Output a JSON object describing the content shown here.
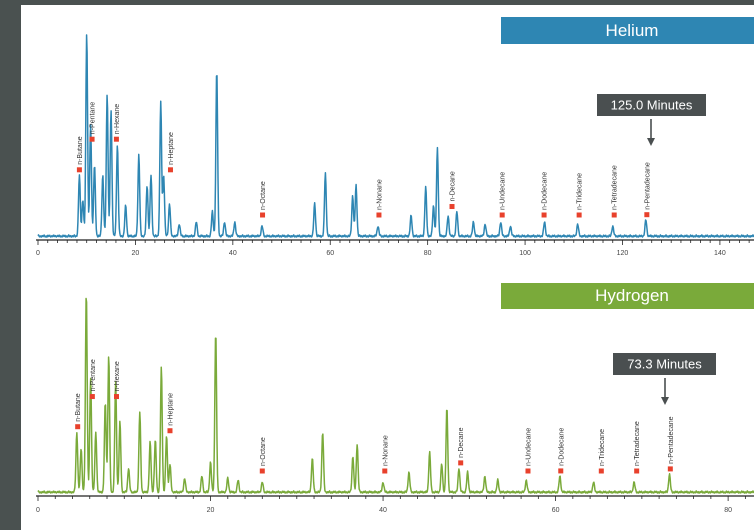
{
  "colors": {
    "frame": "#4a5150",
    "helium": "#2e86b3",
    "hydrogen": "#7aaa3a",
    "marker": "#e8412c",
    "callout_bg": "#4a4f50"
  },
  "chart_data": [
    {
      "type": "line",
      "title": "Helium",
      "callout": "125.0 Minutes",
      "callout_x": 125.0,
      "xlim": [
        0,
        147
      ],
      "xticks": [
        0,
        20,
        40,
        60,
        80,
        100,
        120,
        140
      ],
      "tick_labels": [
        "0",
        "20",
        "40",
        "60",
        "80",
        "100",
        "120",
        "140"
      ],
      "peaks": [
        {
          "x": 8.5,
          "h": 0.3
        },
        {
          "x": 9.2,
          "h": 0.18
        },
        {
          "x": 10.0,
          "h": 1.0
        },
        {
          "x": 10.8,
          "h": 0.55
        },
        {
          "x": 11.6,
          "h": 0.35
        },
        {
          "x": 13.3,
          "h": 0.3
        },
        {
          "x": 14.2,
          "h": 0.7
        },
        {
          "x": 15.0,
          "h": 0.62
        },
        {
          "x": 16.3,
          "h": 0.45
        },
        {
          "x": 18.0,
          "h": 0.15
        },
        {
          "x": 20.7,
          "h": 0.4
        },
        {
          "x": 22.4,
          "h": 0.25
        },
        {
          "x": 23.2,
          "h": 0.3
        },
        {
          "x": 25.2,
          "h": 0.66
        },
        {
          "x": 25.8,
          "h": 0.3
        },
        {
          "x": 27.0,
          "h": 0.16
        },
        {
          "x": 29.0,
          "h": 0.06
        },
        {
          "x": 32.5,
          "h": 0.07
        },
        {
          "x": 35.8,
          "h": 0.12
        },
        {
          "x": 36.7,
          "h": 0.82
        },
        {
          "x": 38.3,
          "h": 0.07
        },
        {
          "x": 40.4,
          "h": 0.07
        },
        {
          "x": 46.0,
          "h": 0.05
        },
        {
          "x": 56.8,
          "h": 0.16
        },
        {
          "x": 59.0,
          "h": 0.31
        },
        {
          "x": 64.6,
          "h": 0.2
        },
        {
          "x": 65.3,
          "h": 0.25
        },
        {
          "x": 69.8,
          "h": 0.05
        },
        {
          "x": 76.6,
          "h": 0.1
        },
        {
          "x": 79.6,
          "h": 0.24
        },
        {
          "x": 81.2,
          "h": 0.15
        },
        {
          "x": 82.0,
          "h": 0.43
        },
        {
          "x": 84.2,
          "h": 0.1
        },
        {
          "x": 86.0,
          "h": 0.12
        },
        {
          "x": 89.4,
          "h": 0.07
        },
        {
          "x": 91.8,
          "h": 0.06
        },
        {
          "x": 95.0,
          "h": 0.07
        },
        {
          "x": 97.0,
          "h": 0.05
        },
        {
          "x": 104.0,
          "h": 0.07
        },
        {
          "x": 110.8,
          "h": 0.06
        },
        {
          "x": 118.0,
          "h": 0.05
        },
        {
          "x": 124.8,
          "h": 0.08
        }
      ],
      "compounds": [
        {
          "name": "n-Butane",
          "x": 8.5
        },
        {
          "name": "n-Pentane",
          "x": 11.1
        },
        {
          "name": "n-Hexane",
          "x": 16.1
        },
        {
          "name": "n-Heptane",
          "x": 27.2
        },
        {
          "name": "n-Octane",
          "x": 46.1
        },
        {
          "name": "n-Nonane",
          "x": 70.0
        },
        {
          "name": "n-Decane",
          "x": 85.0
        },
        {
          "name": "n-Undecane",
          "x": 95.3
        },
        {
          "name": "n-Dodecane",
          "x": 103.9
        },
        {
          "name": "n-Tridecane",
          "x": 111.1
        },
        {
          "name": "n-Tetradecane",
          "x": 118.3
        },
        {
          "name": "n-Pentadecane",
          "x": 125.0
        }
      ]
    },
    {
      "type": "line",
      "title": "Hydrogen",
      "callout": "73.3 Minutes",
      "callout_x": 73.3,
      "xlim": [
        0,
        83
      ],
      "xticks": [
        0,
        20,
        40,
        60,
        80
      ],
      "tick_labels": [
        "0",
        "20",
        "40",
        "60",
        "80"
      ],
      "peaks": [
        {
          "x": 4.5,
          "h": 0.3
        },
        {
          "x": 5.0,
          "h": 0.22
        },
        {
          "x": 5.6,
          "h": 1.0
        },
        {
          "x": 6.1,
          "h": 0.57
        },
        {
          "x": 6.7,
          "h": 0.3
        },
        {
          "x": 7.8,
          "h": 0.45
        },
        {
          "x": 8.2,
          "h": 0.68
        },
        {
          "x": 9.0,
          "h": 0.55
        },
        {
          "x": 9.5,
          "h": 0.35
        },
        {
          "x": 10.5,
          "h": 0.12
        },
        {
          "x": 11.8,
          "h": 0.4
        },
        {
          "x": 13.0,
          "h": 0.25
        },
        {
          "x": 13.6,
          "h": 0.26
        },
        {
          "x": 14.3,
          "h": 0.62
        },
        {
          "x": 14.9,
          "h": 0.28
        },
        {
          "x": 15.3,
          "h": 0.14
        },
        {
          "x": 17.0,
          "h": 0.07
        },
        {
          "x": 19.0,
          "h": 0.08
        },
        {
          "x": 20.0,
          "h": 0.15
        },
        {
          "x": 20.6,
          "h": 0.8
        },
        {
          "x": 22.0,
          "h": 0.07
        },
        {
          "x": 23.2,
          "h": 0.06
        },
        {
          "x": 26.0,
          "h": 0.05
        },
        {
          "x": 31.8,
          "h": 0.17
        },
        {
          "x": 33.0,
          "h": 0.3
        },
        {
          "x": 36.5,
          "h": 0.18
        },
        {
          "x": 37.0,
          "h": 0.24
        },
        {
          "x": 40.0,
          "h": 0.05
        },
        {
          "x": 43.0,
          "h": 0.1
        },
        {
          "x": 45.4,
          "h": 0.2
        },
        {
          "x": 46.8,
          "h": 0.14
        },
        {
          "x": 47.4,
          "h": 0.42
        },
        {
          "x": 48.8,
          "h": 0.12
        },
        {
          "x": 49.8,
          "h": 0.1
        },
        {
          "x": 51.8,
          "h": 0.08
        },
        {
          "x": 53.3,
          "h": 0.06
        },
        {
          "x": 56.6,
          "h": 0.06
        },
        {
          "x": 60.5,
          "h": 0.08
        },
        {
          "x": 64.4,
          "h": 0.05
        },
        {
          "x": 69.1,
          "h": 0.05
        },
        {
          "x": 73.2,
          "h": 0.09
        }
      ],
      "compounds": [
        {
          "name": "n-Butane",
          "x": 4.6
        },
        {
          "name": "n-Pentane",
          "x": 6.3
        },
        {
          "name": "n-Hexane",
          "x": 9.1
        },
        {
          "name": "n-Heptane",
          "x": 15.3
        },
        {
          "name": "n-Octane",
          "x": 26.0
        },
        {
          "name": "n-Nonane",
          "x": 40.2
        },
        {
          "name": "n-Decane",
          "x": 49.0
        },
        {
          "name": "n-Undecane",
          "x": 56.8
        },
        {
          "name": "n-Dodecane",
          "x": 60.6
        },
        {
          "name": "n-Tridecane",
          "x": 65.3
        },
        {
          "name": "n-Tetradecane",
          "x": 69.4
        },
        {
          "name": "n-Pentadecane",
          "x": 73.3
        }
      ]
    }
  ]
}
